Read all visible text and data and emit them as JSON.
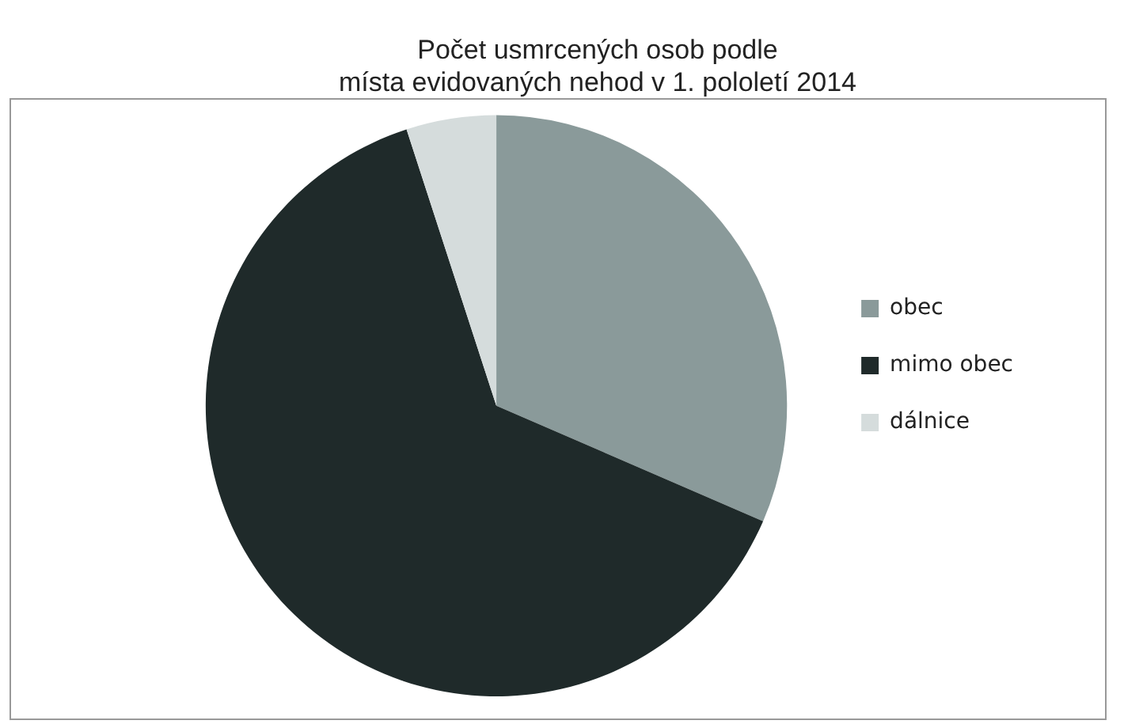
{
  "chart_data": {
    "type": "pie",
    "title": [
      "Počet usmrcených osob podle",
      "místa evidovaných nehod v 1. pololetí 2014"
    ],
    "categories": [
      "obec",
      "mimo obec",
      "dálnice"
    ],
    "values": [
      31.5,
      63.5,
      5
    ],
    "colors": [
      "#8a9a9a",
      "#1f2a2a",
      "#d5dcdc"
    ],
    "legend": "right"
  }
}
